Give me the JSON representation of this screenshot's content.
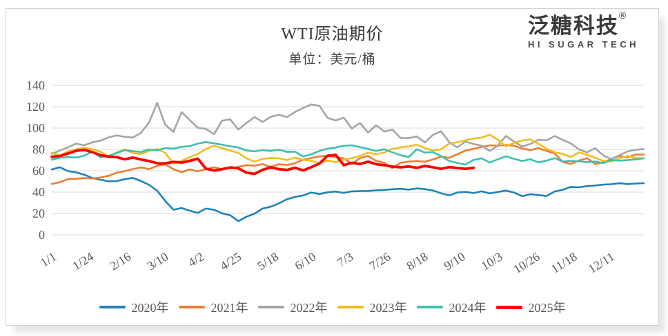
{
  "header": {
    "title": "WTI原油期价",
    "subtitle": "单位：美元/桶"
  },
  "logo": {
    "brand": "泛糖科技",
    "registered_mark": "®",
    "subtitle": "HI SUGAR TECH"
  },
  "colors": {
    "axis_text": "#595959",
    "gridline": "#d9d9d9",
    "title_text": "#383838"
  },
  "chart_data": {
    "type": "line",
    "title": "WTI原油期价",
    "subtitle": "单位：美元/桶",
    "ylabel": "",
    "xlabel": "",
    "unit": "美元/桶",
    "ylim": [
      0,
      140
    ],
    "y_ticks": [
      0,
      20,
      40,
      60,
      80,
      100,
      120,
      140
    ],
    "grid": true,
    "legend_position": "bottom",
    "x_tick_labels": [
      "1/1",
      "1/24",
      "2/16",
      "3/10",
      "4/2",
      "4/25",
      "5/18",
      "6/10",
      "7/3",
      "7/26",
      "8/18",
      "9/10",
      "10/3",
      "10/26",
      "11/18",
      "12/11"
    ],
    "x_tick_days": [
      1,
      24,
      47,
      70,
      92,
      115,
      138,
      161,
      184,
      207,
      230,
      253,
      276,
      299,
      322,
      345
    ],
    "x_range_days": [
      1,
      366
    ],
    "day_step": 5,
    "series": [
      {
        "name": "2020年",
        "color": "#1f82b8",
        "width": 2.6,
        "start_day": 1,
        "values": [
          61.2,
          63.3,
          59.6,
          58.5,
          56.3,
          53.2,
          51.6,
          50.1,
          50.3,
          52.1,
          53.3,
          50.4,
          46.8,
          41.3,
          31.7,
          23.5,
          25.1,
          22.6,
          20.5,
          24.6,
          23.4,
          20.1,
          18.3,
          12.8,
          16.9,
          19.8,
          24.6,
          26.3,
          29.4,
          33.3,
          35.5,
          36.9,
          39.6,
          38.2,
          39.8,
          40.5,
          39.3,
          40.7,
          40.9,
          41.1,
          41.7,
          42.0,
          42.7,
          43.1,
          42.3,
          43.4,
          42.8,
          41.5,
          38.9,
          36.9,
          39.6,
          40.2,
          39.1,
          40.7,
          38.8,
          40.1,
          41.4,
          39.6,
          36.2,
          38.0,
          37.2,
          36.4,
          40.6,
          42.2,
          44.9,
          44.5,
          45.6,
          46.1,
          47.0,
          47.4,
          48.3,
          47.5,
          48.0,
          48.4
        ]
      },
      {
        "name": "2021年",
        "color": "#ed7d31",
        "width": 2.6,
        "start_day": 1,
        "values": [
          47.6,
          49.3,
          52.2,
          52.4,
          53.2,
          52.7,
          53.8,
          55.3,
          58.1,
          59.6,
          61.6,
          63.1,
          61.5,
          64.6,
          66.0,
          61.5,
          58.7,
          61.3,
          59.4,
          61.5,
          63.2,
          61.4,
          62.2,
          63.7,
          65.2,
          64.8,
          66.2,
          63.7,
          66.1,
          65.4,
          67.0,
          70.4,
          71.9,
          73.4,
          74.0,
          72.8,
          71.6,
          66.5,
          71.9,
          73.9,
          69.2,
          67.5,
          62.4,
          67.4,
          68.6,
          69.1,
          68.5,
          70.6,
          73.2,
          72.1,
          75.5,
          78.9,
          80.6,
          82.4,
          83.8,
          83.5,
          84.2,
          83.4,
          80.9,
          79.3,
          81.2,
          78.6,
          76.2,
          68.2,
          66.4,
          69.6,
          71.8,
          66.3,
          68.0,
          71.1,
          73.8,
          72.5,
          75.2,
          75.2
        ]
      },
      {
        "name": "2022年",
        "color": "#a5a5a5",
        "width": 2.6,
        "start_day": 1,
        "values": [
          75.9,
          78.9,
          81.9,
          85.4,
          83.8,
          86.6,
          88.2,
          91.3,
          93.1,
          91.8,
          91.1,
          95.5,
          105.2,
          123.7,
          103.1,
          96.4,
          114.9,
          107.6,
          100.3,
          99.3,
          94.3,
          106.9,
          108.2,
          98.5,
          104.7,
          110.3,
          105.8,
          110.5,
          112.4,
          110.3,
          115.1,
          118.9,
          122.1,
          120.9,
          109.6,
          107.1,
          109.8,
          99.5,
          104.8,
          95.8,
          102.6,
          96.7,
          98.6,
          90.7,
          90.5,
          92.1,
          86.5,
          93.7,
          97.0,
          86.9,
          81.9,
          87.3,
          85.1,
          83.5,
          78.5,
          83.6,
          92.6,
          87.3,
          82.8,
          85.1,
          89.1,
          88.4,
          92.6,
          88.9,
          85.6,
          80.0,
          77.2,
          81.2,
          74.3,
          71.0,
          74.5,
          78.1,
          79.6,
          80.3
        ]
      },
      {
        "name": "2023年",
        "color": "#f2bd1d",
        "width": 2.6,
        "start_day": 1,
        "values": [
          76.9,
          74.1,
          78.2,
          80.1,
          81.5,
          80.2,
          77.9,
          73.4,
          77.1,
          80.1,
          76.5,
          75.7,
          78.5,
          80.5,
          76.7,
          66.7,
          69.3,
          72.8,
          75.7,
          80.4,
          83.3,
          81.2,
          78.8,
          76.8,
          71.7,
          68.6,
          71.1,
          72.0,
          71.6,
          70.0,
          72.3,
          70.1,
          69.4,
          67.1,
          69.5,
          68.3,
          70.6,
          71.8,
          73.9,
          77.0,
          75.4,
          77.1,
          80.6,
          81.8,
          82.9,
          84.4,
          81.3,
          78.9,
          80.1,
          85.5,
          86.7,
          88.5,
          90.2,
          91.0,
          93.7,
          89.2,
          82.8,
          86.1,
          88.3,
          89.4,
          85.4,
          80.5,
          77.4,
          75.7,
          72.9,
          77.3,
          74.9,
          72.1,
          69.3,
          68.6,
          71.5,
          73.9,
          71.8,
          71.7
        ]
      },
      {
        "name": "2024年",
        "color": "#3dbfaf",
        "width": 2.6,
        "start_day": 1,
        "values": [
          70.4,
          72.2,
          72.7,
          72.4,
          74.1,
          78.0,
          72.8,
          73.9,
          76.6,
          79.2,
          78.3,
          77.6,
          80.0,
          79.1,
          81.3,
          80.7,
          82.4,
          83.1,
          85.4,
          86.9,
          85.7,
          84.4,
          82.9,
          81.9,
          79.0,
          78.1,
          79.3,
          78.6,
          79.8,
          77.7,
          77.9,
          73.3,
          75.5,
          78.5,
          80.7,
          81.7,
          83.4,
          83.9,
          82.1,
          80.5,
          78.6,
          80.1,
          77.2,
          74.6,
          72.9,
          80.1,
          77.0,
          77.4,
          73.6,
          69.2,
          67.2,
          65.8,
          70.1,
          71.6,
          67.7,
          70.8,
          73.6,
          71.1,
          69.2,
          70.8,
          67.9,
          69.5,
          71.8,
          68.6,
          69.2,
          68.9,
          68.1,
          68.7,
          67.2,
          70.1,
          69.5,
          70.0,
          70.6,
          71.7
        ]
      },
      {
        "name": "2025年",
        "color": "#fe0000",
        "width": 3.8,
        "start_day": 1,
        "values": [
          73.1,
          73.9,
          76.1,
          78.7,
          79.6,
          77.4,
          74.6,
          73.2,
          72.8,
          70.7,
          72.4,
          70.5,
          69.1,
          67.0,
          66.9,
          68.3,
          67.7,
          69.3,
          71.3,
          62.0,
          60.2,
          61.5,
          63.1,
          62.3,
          58.2,
          57.1,
          60.9,
          63.2,
          61.5,
          60.8,
          62.8,
          60.3,
          63.4,
          66.8,
          74.0,
          74.9,
          65.2,
          67.5,
          66.3,
          68.5,
          66.1,
          65.2,
          63.9,
          63.2,
          64.0,
          62.7,
          64.5,
          63.2,
          61.8,
          63.4,
          62.6,
          61.8,
          62.8
        ]
      }
    ]
  }
}
